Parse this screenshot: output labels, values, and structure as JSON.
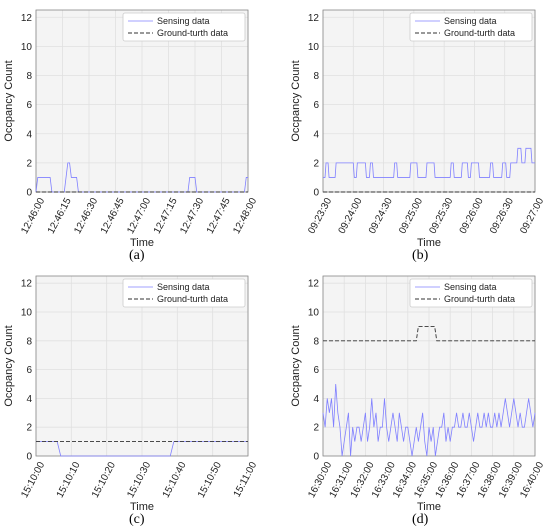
{
  "chart_data": [
    {
      "type": "line",
      "panel_label": "(a)",
      "xlabel": "Time",
      "ylabel": "Occpancy Count",
      "ylim": [
        0,
        12.5
      ],
      "yticks": [
        0,
        2,
        4,
        6,
        8,
        10,
        12
      ],
      "xticks": [
        "12:46:00",
        "12:46:15",
        "12:46:30",
        "12:46:45",
        "12:47:00",
        "12:47:15",
        "12:47:30",
        "12:47:45",
        "12:48:00"
      ],
      "xrange": [
        0,
        120
      ],
      "legend_position": "top-right",
      "grid": true,
      "series": [
        {
          "name": "Sensing data",
          "color": "#8080ff",
          "style": "solid",
          "x": [
            0,
            1,
            2,
            8,
            9,
            16,
            17,
            18,
            19,
            20,
            21,
            23,
            24,
            86,
            87,
            90,
            91,
            118,
            119,
            120
          ],
          "y": [
            0,
            1,
            1,
            1,
            0,
            0,
            1,
            2,
            2,
            1,
            1,
            1,
            0,
            0,
            1,
            1,
            0,
            0,
            1,
            1
          ]
        },
        {
          "name": "Ground-turth data",
          "color": "#333333",
          "style": "dashed",
          "x": [
            0,
            120
          ],
          "y": [
            0,
            0
          ]
        }
      ]
    },
    {
      "type": "line",
      "panel_label": "(b)",
      "xlabel": "Time",
      "ylabel": "Occpancy Count",
      "ylim": [
        0,
        12.5
      ],
      "yticks": [
        0,
        2,
        4,
        6,
        8,
        10,
        12
      ],
      "xticks": [
        "09:23:30",
        "09:24:00",
        "09:24:30",
        "09:25:00",
        "09:25:30",
        "09:26:00",
        "09:26:30",
        "09:27:00"
      ],
      "xrange": [
        0,
        210
      ],
      "legend_position": "top-right",
      "grid": true,
      "series": [
        {
          "name": "Sensing data",
          "color": "#8080ff",
          "style": "solid",
          "x": [
            0,
            2,
            3,
            5,
            6,
            12,
            13,
            15,
            16,
            30,
            31,
            33,
            34,
            42,
            43,
            46,
            47,
            49,
            50,
            70,
            71,
            73,
            74,
            86,
            87,
            93,
            94,
            102,
            103,
            110,
            111,
            126,
            127,
            129,
            130,
            137,
            138,
            143,
            144,
            146,
            147,
            154,
            155,
            165,
            166,
            168,
            169,
            177,
            178,
            181,
            182,
            185,
            186,
            192,
            193,
            196,
            197,
            200,
            201,
            206,
            207,
            210
          ],
          "y": [
            1,
            1,
            2,
            2,
            1,
            1,
            2,
            2,
            2,
            2,
            1,
            1,
            2,
            2,
            1,
            1,
            2,
            2,
            1,
            1,
            2,
            2,
            1,
            1,
            2,
            2,
            1,
            1,
            2,
            2,
            1,
            1,
            2,
            2,
            1,
            1,
            2,
            2,
            1,
            1,
            2,
            2,
            1,
            1,
            2,
            2,
            1,
            1,
            2,
            2,
            1,
            1,
            2,
            2,
            3,
            3,
            2,
            2,
            3,
            3,
            2,
            2
          ]
        },
        {
          "name": "Ground-turth data",
          "color": "#333333",
          "style": "dashed",
          "x": [
            0,
            210
          ],
          "y": [
            0,
            0
          ]
        }
      ]
    },
    {
      "type": "line",
      "panel_label": "(c)",
      "xlabel": "Time",
      "ylabel": "Occpancy Count",
      "ylim": [
        0,
        12.5
      ],
      "yticks": [
        0,
        2,
        4,
        6,
        8,
        10,
        12
      ],
      "xticks": [
        "15:10:00",
        "15:10:10",
        "15:10:20",
        "15:10:30",
        "15:10:40",
        "15:10:50",
        "15:11:00"
      ],
      "xrange": [
        0,
        60
      ],
      "legend_position": "top-right",
      "grid": true,
      "series": [
        {
          "name": "Sensing data",
          "color": "#8080ff",
          "style": "solid",
          "x": [
            0,
            6,
            7,
            38,
            39,
            60
          ],
          "y": [
            1,
            1,
            0,
            0,
            1,
            1
          ]
        },
        {
          "name": "Ground-turth data",
          "color": "#333333",
          "style": "dashed",
          "x": [
            0,
            60
          ],
          "y": [
            1,
            1
          ]
        }
      ]
    },
    {
      "type": "line",
      "panel_label": "(d)",
      "xlabel": "Time",
      "ylabel": "Occpancy Count",
      "ylim": [
        0,
        12.5
      ],
      "yticks": [
        0,
        2,
        4,
        6,
        8,
        10,
        12
      ],
      "xticks": [
        "16:30:00",
        "16:31:00",
        "16:32:00",
        "16:33:00",
        "16:34:00",
        "16:35:00",
        "16:36:00",
        "16:37:00",
        "16:38:00",
        "16:39:00",
        "16:40:00"
      ],
      "xrange": [
        0,
        600
      ],
      "legend_position": "top-right",
      "grid": true,
      "series": [
        {
          "name": "Sensing data",
          "color": "#8080ff",
          "style": "solid",
          "x": [
            0,
            6,
            12,
            18,
            24,
            30,
            36,
            42,
            48,
            54,
            60,
            66,
            72,
            78,
            84,
            90,
            96,
            102,
            108,
            114,
            120,
            126,
            132,
            138,
            144,
            150,
            156,
            162,
            168,
            174,
            180,
            186,
            192,
            198,
            204,
            210,
            216,
            222,
            228,
            234,
            240,
            246,
            252,
            258,
            264,
            270,
            276,
            282,
            288,
            294,
            300,
            306,
            312,
            318,
            324,
            330,
            336,
            342,
            348,
            354,
            360,
            366,
            372,
            378,
            384,
            390,
            396,
            402,
            408,
            414,
            420,
            426,
            432,
            438,
            444,
            450,
            456,
            462,
            468,
            474,
            480,
            486,
            492,
            498,
            504,
            510,
            516,
            522,
            528,
            534,
            540,
            546,
            552,
            558,
            564,
            570,
            576,
            582,
            588,
            594,
            600
          ],
          "y": [
            3,
            2,
            4,
            3,
            4,
            2,
            5,
            3,
            2,
            0,
            1,
            2,
            3,
            0,
            2,
            1,
            2,
            2,
            1,
            2,
            3,
            1,
            2,
            4,
            2,
            3,
            1,
            2,
            2,
            4,
            2,
            1,
            2,
            3,
            2,
            1,
            3,
            2,
            1,
            2,
            2,
            1,
            0,
            1,
            2,
            1,
            2,
            3,
            1,
            0,
            2,
            1,
            2,
            0,
            1,
            2,
            2,
            3,
            1,
            2,
            1,
            2,
            2,
            3,
            2,
            2,
            3,
            2,
            2,
            3,
            2,
            1,
            2,
            3,
            2,
            2,
            3,
            2,
            3,
            2,
            2,
            3,
            2,
            3,
            2,
            3,
            4,
            3,
            2,
            3,
            4,
            3,
            2,
            3,
            2,
            2,
            3,
            4,
            3,
            2,
            3
          ]
        },
        {
          "name": "Ground-turth data",
          "color": "#333333",
          "style": "dashed",
          "x": [
            0,
            264,
            270,
            316,
            322,
            600
          ],
          "y": [
            8,
            8,
            9,
            9,
            8,
            8
          ]
        }
      ]
    }
  ]
}
